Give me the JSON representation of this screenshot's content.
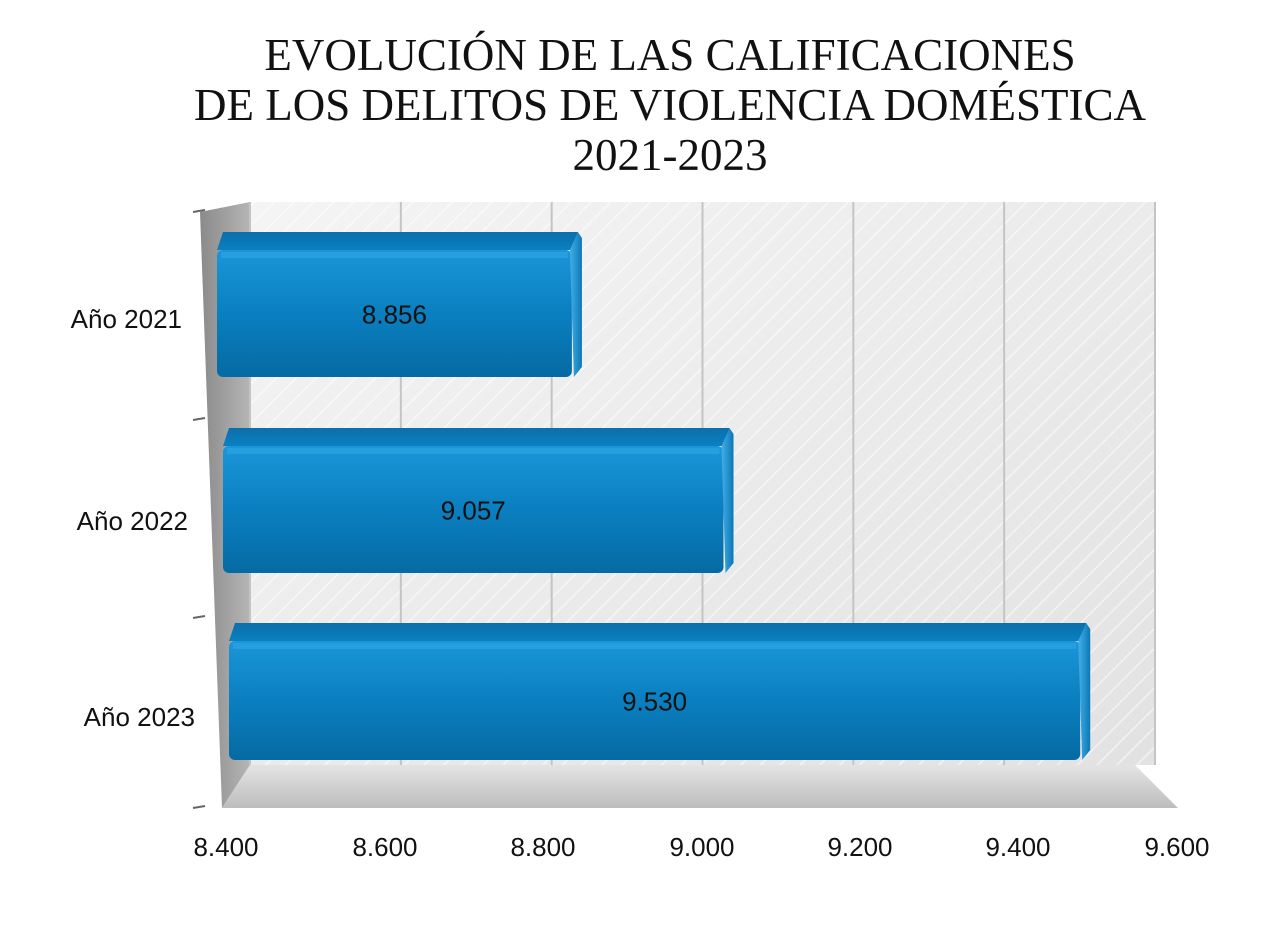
{
  "chart_data": {
    "type": "bar",
    "orientation": "horizontal",
    "title_lines": [
      "EVOLUCIÓN DE LAS CALIFICACIONES",
      "DE LOS DELITOS DE VIOLENCIA DOMÉSTICA",
      "2021-2023"
    ],
    "categories": [
      "Año 2021",
      "Año 2022",
      "Año 2023"
    ],
    "values": [
      8856,
      9057,
      9530
    ],
    "data_labels": [
      "8.856",
      "9.057",
      "9.530"
    ],
    "x_ticks": [
      8400,
      8600,
      8800,
      9000,
      9200,
      9400,
      9600
    ],
    "x_tick_labels": [
      "8.400",
      "8.600",
      "8.800",
      "9.000",
      "9.200",
      "9.400",
      "9.600"
    ],
    "xlim": [
      8400,
      9600
    ],
    "grid": true,
    "legend": "none",
    "colors": {
      "bar": "#0a7fc0",
      "bar_dark": "#06588a",
      "bar_light": "#59b7ee",
      "wall": "#ededed",
      "floor": "#cfcfcf"
    }
  }
}
